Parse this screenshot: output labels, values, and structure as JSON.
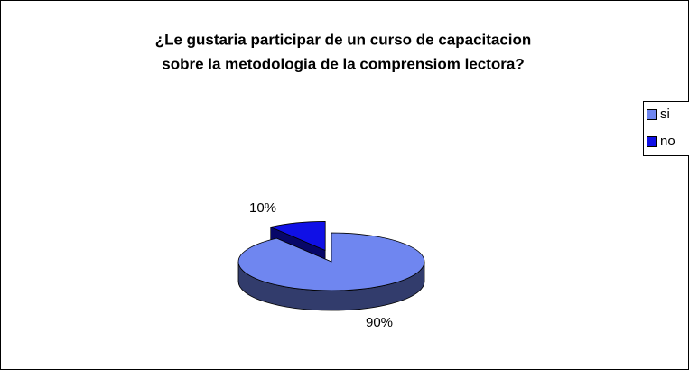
{
  "chart_data": {
    "type": "pie",
    "title": [
      "¿Le gustaria participar de un curso de capacitacion",
      "sobre la metodologia de la comprensiom lectora?"
    ],
    "categories": [
      "si",
      "no"
    ],
    "values": [
      90,
      10
    ],
    "value_labels": [
      "90%",
      "10%"
    ],
    "colors": [
      "#6f86f0",
      "#1010e6"
    ],
    "legend": "right"
  }
}
